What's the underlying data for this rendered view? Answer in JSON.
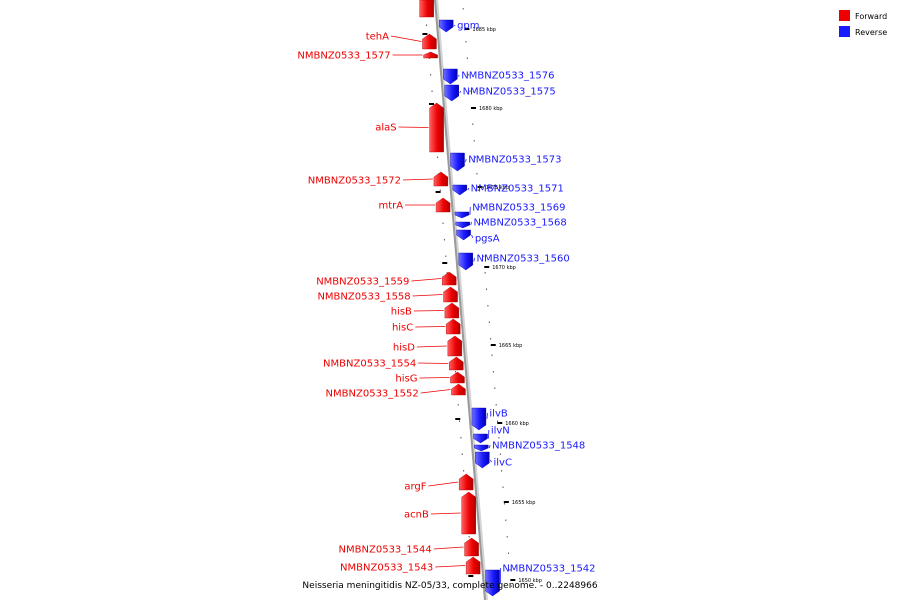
{
  "caption": "Neisseria meningitidis NZ-05/33, complete genome. - 0..2248966",
  "legend": {
    "placement": "top-right",
    "items": [
      {
        "label": "Forward",
        "color": "#ee0000"
      },
      {
        "label": "Reverse",
        "color": "#1a1aff"
      }
    ]
  },
  "colors": {
    "forward": "#ee0000",
    "reverse": "#1a1aff",
    "backbone": "#9a9a9a"
  },
  "kbp_labels": [
    "1685 kbp",
    "1680 kbp",
    "1675 kbp",
    "1670 kbp",
    "1665 kbp",
    "1660 kbp",
    "1655 kbp",
    "1650 kbp"
  ],
  "forward_genes": [
    "tehA",
    "NMBNZ0533_1577",
    "alaS",
    "NMBNZ0533_1572",
    "mtrA",
    "NMBNZ0533_1559",
    "NMBNZ0533_1558",
    "hisB",
    "hisC",
    "hisD",
    "NMBNZ0533_1554",
    "hisG",
    "NMBNZ0533_1552",
    "argF",
    "acnB",
    "NMBNZ0533_1544",
    "NMBNZ0533_1543"
  ],
  "reverse_genes": [
    "gpm",
    "NMBNZ0533_1576",
    "NMBNZ0533_1575",
    "NMBNZ0533_1573",
    "NMBNZ0533_1571",
    "NMBNZ0533_1569",
    "NMBNZ0533_1568",
    "pgsA",
    "NMBNZ0533_1560",
    "ilvB",
    "ilvN",
    "NMBNZ0533_1548",
    "ilvC",
    "NMBNZ0533_1542"
  ]
}
